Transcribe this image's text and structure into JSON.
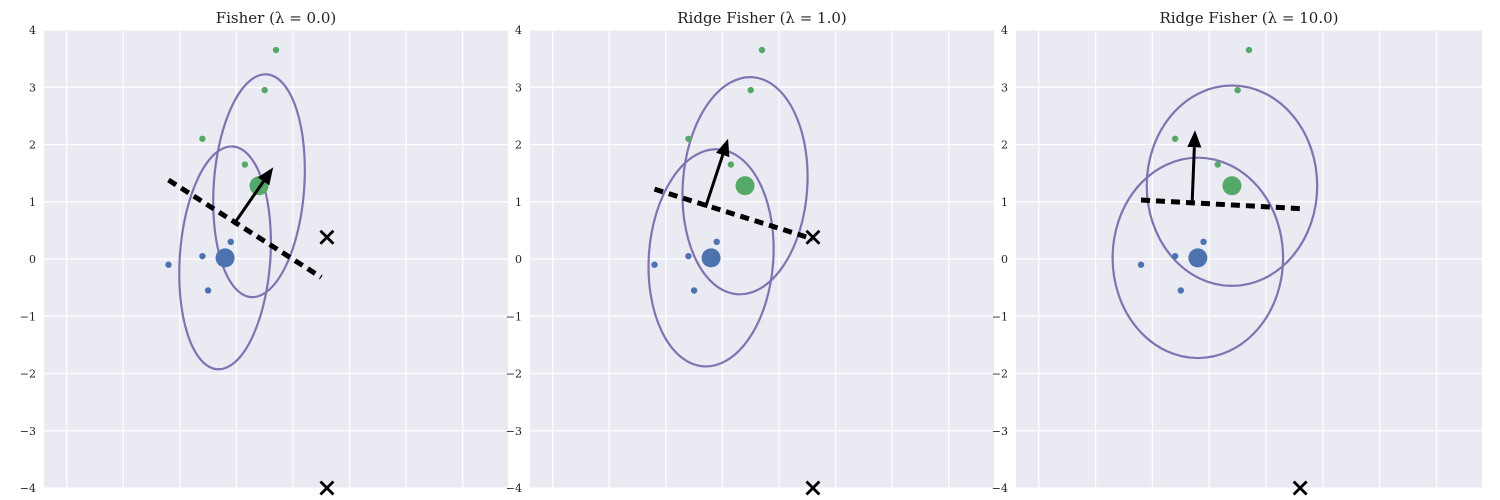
{
  "colors": {
    "background": "#EAEAF2",
    "grid": "#ffffff",
    "blue": "#4C72B0",
    "green": "#55A868",
    "purple": "#8172B2",
    "black": "#000000"
  },
  "chart_data": [
    {
      "type": "scatter",
      "title": "Fisher (λ = 0.0)",
      "xlim": [
        -3.4,
        4.8
      ],
      "ylim": [
        -4.0,
        4.0
      ],
      "yticks": [
        4,
        3,
        2,
        1,
        0,
        -1,
        -2,
        -3,
        -4
      ],
      "grid": true,
      "series": [
        {
          "class": "blue",
          "points": [
            [
              -1.2,
              -0.1
            ],
            [
              -0.6,
              0.05
            ],
            [
              -0.1,
              0.3
            ],
            [
              -0.5,
              -0.55
            ]
          ]
        },
        {
          "class": "green",
          "points": [
            [
              0.7,
              3.65
            ],
            [
              0.5,
              2.95
            ],
            [
              -0.6,
              2.1
            ],
            [
              0.15,
              1.65
            ]
          ]
        }
      ],
      "class_means": [
        {
          "class": "blue",
          "x": -0.2,
          "y": 0.02
        },
        {
          "class": "green",
          "x": 0.4,
          "y": 1.28
        }
      ],
      "ellipses": [
        {
          "cx": -0.2,
          "cy": 0.02,
          "rx": 0.8,
          "ry": 1.95,
          "angle": 4
        },
        {
          "cx": 0.4,
          "cy": 1.28,
          "rx": 0.8,
          "ry": 1.95,
          "angle": 4
        }
      ],
      "boundary": [
        [
          -1.2,
          1.38
        ],
        [
          1.5,
          -0.32
        ]
      ],
      "direction_arrow": {
        "from": [
          -0.05,
          0.6
        ],
        "to": [
          0.65,
          1.6
        ]
      },
      "test_points": [
        {
          "marker": "x",
          "x": 1.6,
          "y": 0.38
        },
        {
          "marker": "x",
          "x": 1.6,
          "y": -4.0
        }
      ]
    },
    {
      "type": "scatter",
      "title": "Ridge Fisher (λ = 1.0)",
      "xlim": [
        -3.4,
        4.8
      ],
      "ylim": [
        -4.0,
        4.0
      ],
      "yticks": [
        4,
        3,
        2,
        1,
        0,
        -1,
        -2,
        -3,
        -4
      ],
      "grid": true,
      "series": [
        {
          "class": "blue",
          "points": [
            [
              -1.2,
              -0.1
            ],
            [
              -0.6,
              0.05
            ],
            [
              -0.1,
              0.3
            ],
            [
              -0.5,
              -0.55
            ]
          ]
        },
        {
          "class": "green",
          "points": [
            [
              0.7,
              3.65
            ],
            [
              0.5,
              2.95
            ],
            [
              -0.6,
              2.1
            ],
            [
              0.15,
              1.65
            ]
          ]
        }
      ],
      "class_means": [
        {
          "class": "blue",
          "x": -0.2,
          "y": 0.02
        },
        {
          "class": "green",
          "x": 0.4,
          "y": 1.28
        }
      ],
      "ellipses": [
        {
          "cx": -0.2,
          "cy": 0.02,
          "rx": 1.1,
          "ry": 1.9,
          "angle": 4
        },
        {
          "cx": 0.4,
          "cy": 1.28,
          "rx": 1.1,
          "ry": 1.9,
          "angle": 4
        }
      ],
      "boundary": [
        [
          -1.2,
          1.22
        ],
        [
          1.6,
          0.35
        ]
      ],
      "direction_arrow": {
        "from": [
          -0.3,
          0.9
        ],
        "to": [
          0.1,
          2.1
        ]
      },
      "test_points": [
        {
          "marker": "x",
          "x": 1.6,
          "y": 0.38
        },
        {
          "marker": "x",
          "x": 1.6,
          "y": -4.0
        }
      ]
    },
    {
      "type": "scatter",
      "title": "Ridge Fisher (λ = 10.0)",
      "xlim": [
        -3.4,
        4.8
      ],
      "ylim": [
        -4.0,
        4.0
      ],
      "yticks": [
        4,
        3,
        2,
        1,
        0,
        -1,
        -2,
        -3,
        -4
      ],
      "grid": true,
      "series": [
        {
          "class": "blue",
          "points": [
            [
              -1.2,
              -0.1
            ],
            [
              -0.6,
              0.05
            ],
            [
              -0.1,
              0.3
            ],
            [
              -0.5,
              -0.55
            ]
          ]
        },
        {
          "class": "green",
          "points": [
            [
              0.7,
              3.65
            ],
            [
              0.5,
              2.95
            ],
            [
              -0.6,
              2.1
            ],
            [
              0.15,
              1.65
            ]
          ]
        }
      ],
      "class_means": [
        {
          "class": "blue",
          "x": -0.2,
          "y": 0.02
        },
        {
          "class": "green",
          "x": 0.4,
          "y": 1.28
        }
      ],
      "ellipses": [
        {
          "cx": -0.2,
          "cy": 0.02,
          "rx": 1.5,
          "ry": 1.75,
          "angle": 0
        },
        {
          "cx": 0.4,
          "cy": 1.28,
          "rx": 1.5,
          "ry": 1.75,
          "angle": 0
        }
      ],
      "boundary": [
        [
          -1.2,
          1.03
        ],
        [
          1.6,
          0.88
        ]
      ],
      "direction_arrow": {
        "from": [
          -0.3,
          1.0
        ],
        "to": [
          -0.25,
          2.25
        ]
      },
      "test_points": [
        {
          "marker": "x",
          "x": 1.6,
          "y": -4.0
        }
      ]
    }
  ]
}
